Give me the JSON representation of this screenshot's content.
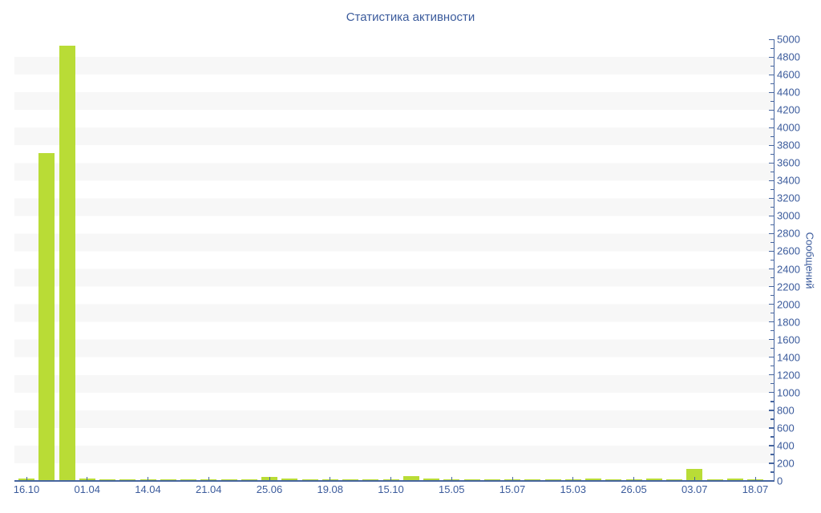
{
  "chart_data": {
    "type": "bar",
    "title": "Статистика активности",
    "ylabel": "Сообщений",
    "xlabel": "",
    "ylim": [
      0,
      5000
    ],
    "y_major_tick_step": 200,
    "y_minor_tick_step": 100,
    "grid": "alternating horizontal stripes every 200 units",
    "legend": "none",
    "y_axis_side": "right",
    "y_tick_labels": [
      "0",
      "200",
      "400",
      "600",
      "800",
      "1000",
      "1200",
      "1400",
      "1600",
      "1800",
      "2000",
      "2200",
      "2400",
      "2600",
      "2800",
      "3000",
      "3200",
      "3400",
      "3600",
      "3800",
      "4000",
      "4200",
      "4400",
      "4600",
      "4800",
      "5000"
    ],
    "x_tick_labels": [
      "16.10",
      "01.04",
      "14.04",
      "21.04",
      "25.06",
      "19.08",
      "15.10",
      "15.05",
      "15.07",
      "15.03",
      "26.05",
      "03.07",
      "18.07"
    ],
    "label_every_n_bars": 3,
    "values": [
      30,
      3715,
      4930,
      25,
      12,
      10,
      10,
      12,
      12,
      12,
      12,
      10,
      48,
      24,
      12,
      18,
      20,
      18,
      12,
      55,
      24,
      20,
      18,
      12,
      18,
      12,
      12,
      15,
      30,
      10,
      12,
      24,
      15,
      140,
      12,
      28,
      15
    ],
    "colors": {
      "bar": "#b9dc36",
      "axis_line": "#46659f",
      "text": "#3b5b9c",
      "stripe": "#f7f7f7",
      "background": "#ffffff"
    }
  }
}
